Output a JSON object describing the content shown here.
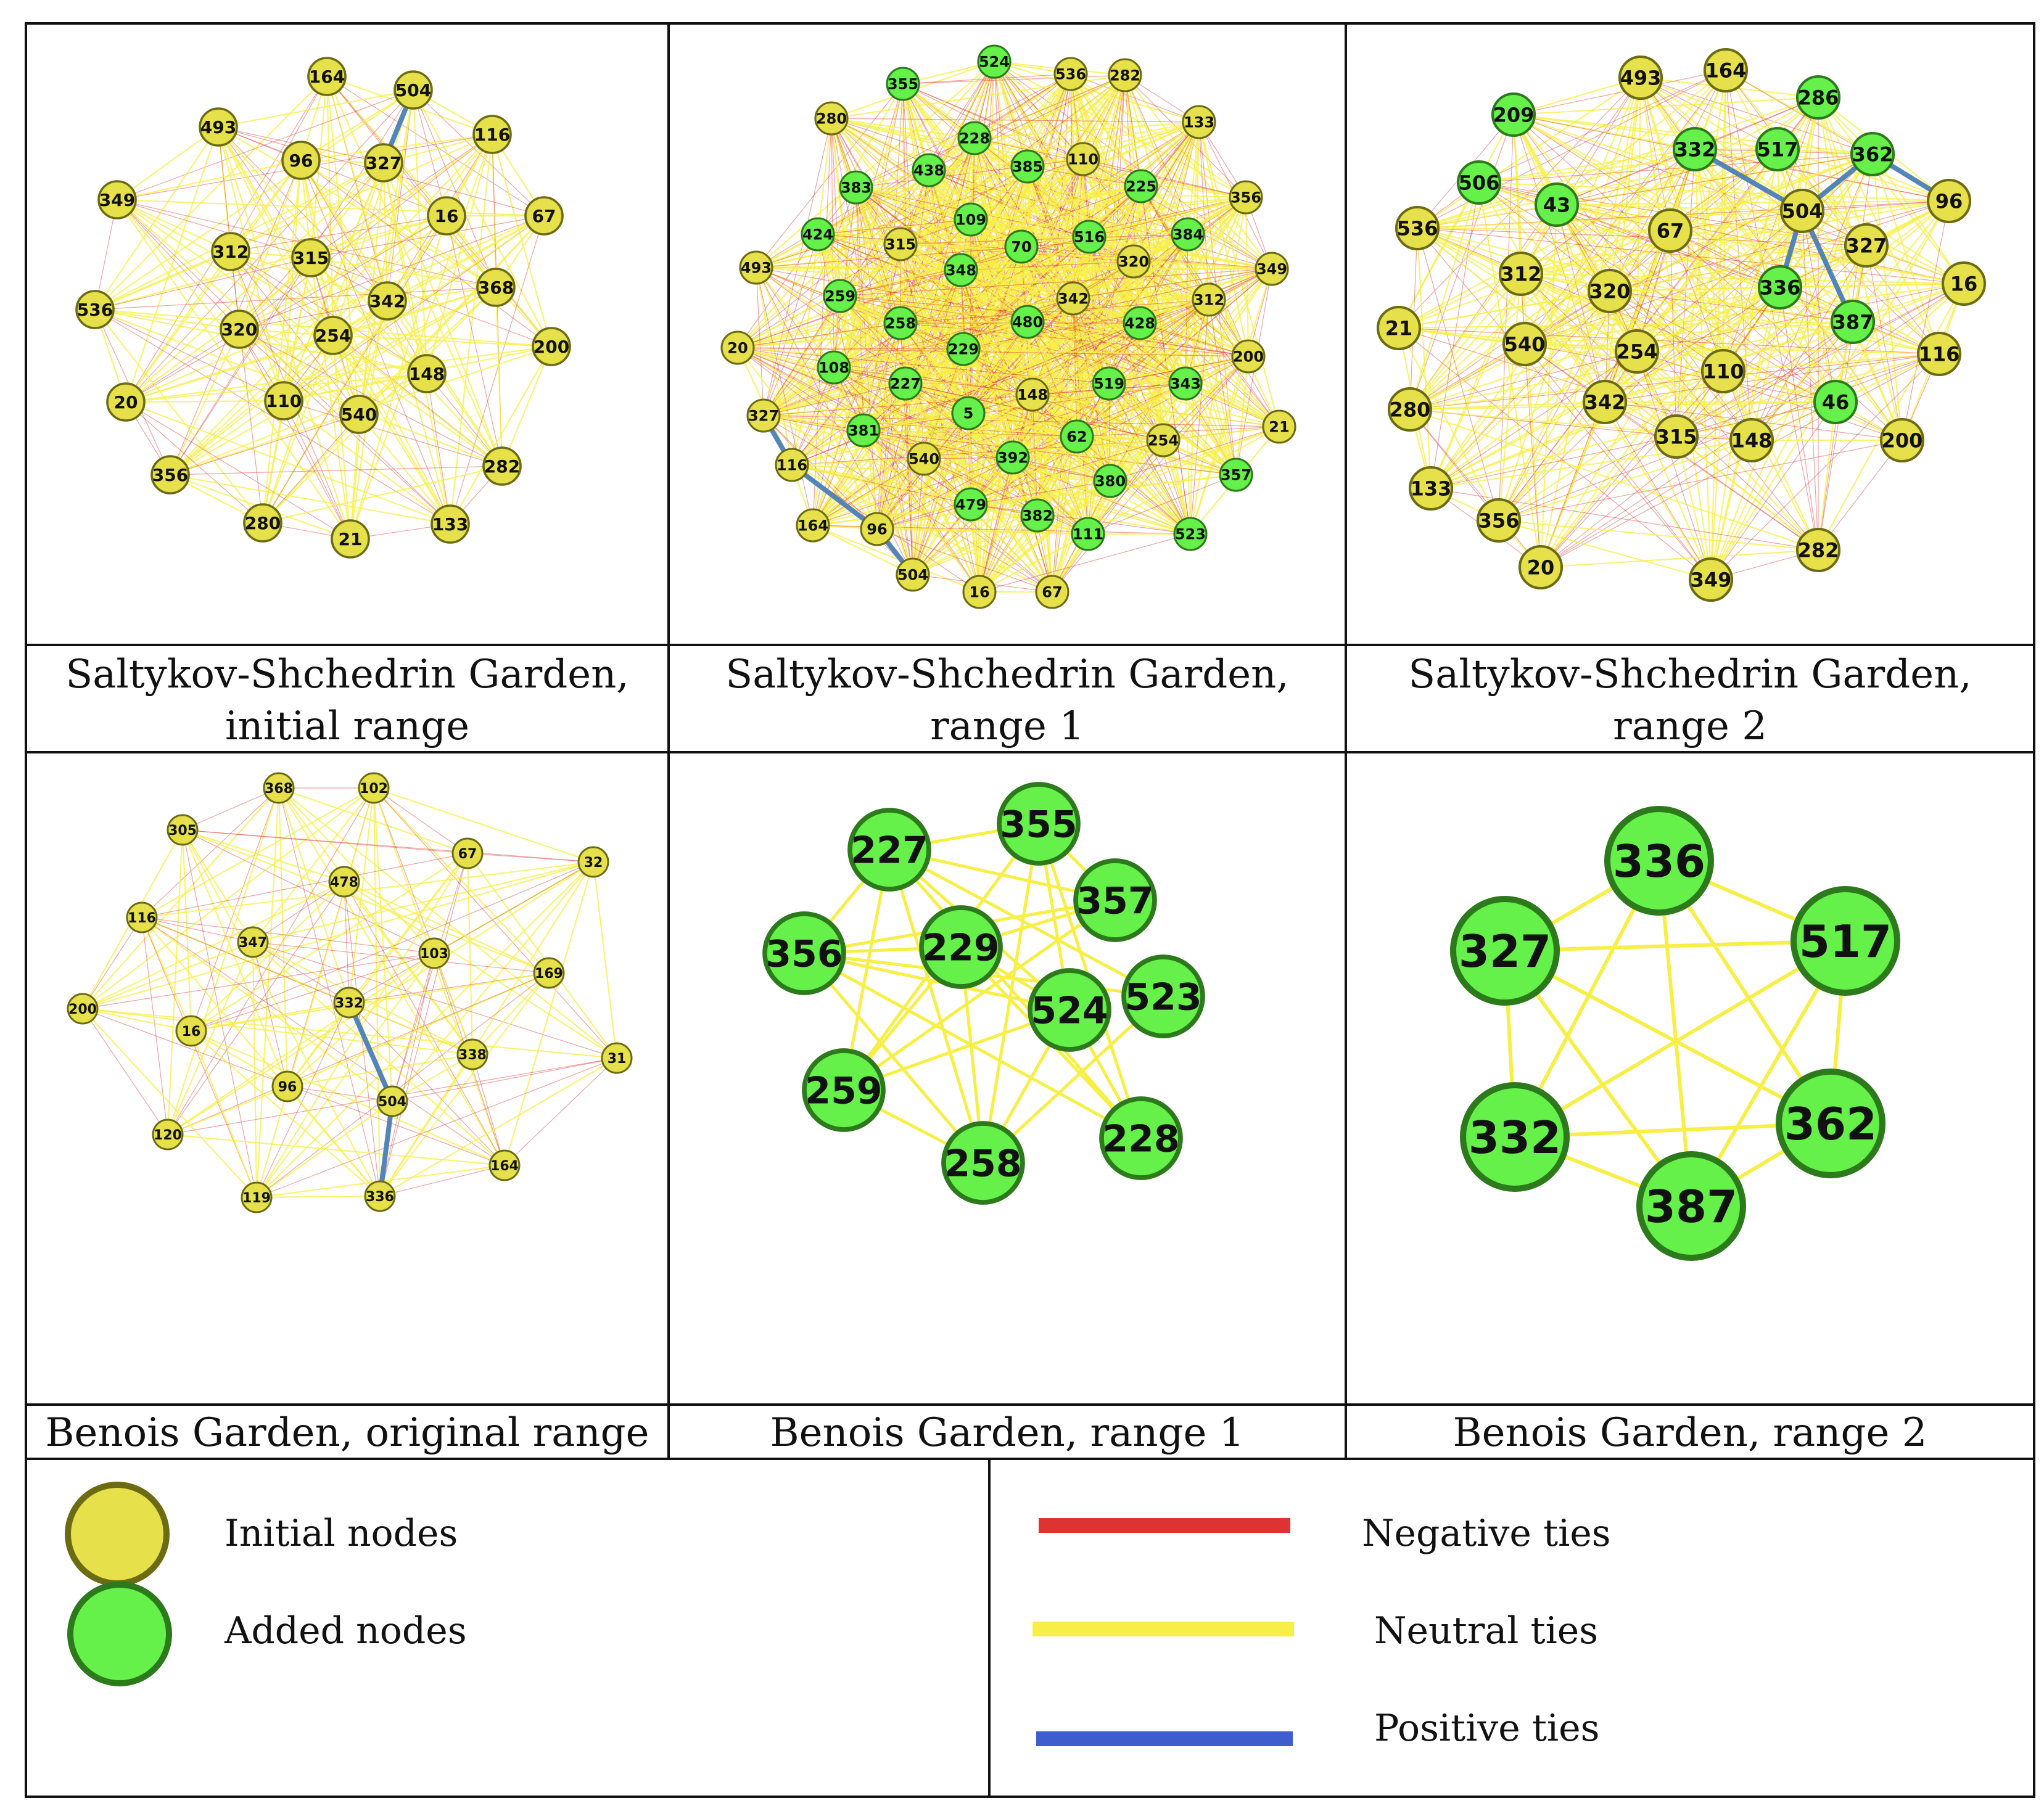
{
  "colors": {
    "initial_fill": "#e6e04a",
    "initial_stroke": "#6b6b12",
    "added_fill": "#66f04a",
    "added_stroke": "#2c7a1c",
    "negative": "#dd3333",
    "neutral": "#f7ef45",
    "positive": "#3d5ecc",
    "positive_drawn": "#4a7fb8"
  },
  "panels": [
    {
      "id": "ssg-initial",
      "caption_line1": "Saltykov-Shchedrin Garden,",
      "caption_line2": "initial range",
      "nodes": [
        {
          "id": "164",
          "type": "initial"
        },
        {
          "id": "504",
          "type": "initial"
        },
        {
          "id": "116",
          "type": "initial"
        },
        {
          "id": "493",
          "type": "initial"
        },
        {
          "id": "96",
          "type": "initial"
        },
        {
          "id": "327",
          "type": "initial"
        },
        {
          "id": "349",
          "type": "initial"
        },
        {
          "id": "16",
          "type": "initial"
        },
        {
          "id": "67",
          "type": "initial"
        },
        {
          "id": "312",
          "type": "initial"
        },
        {
          "id": "315",
          "type": "initial"
        },
        {
          "id": "368",
          "type": "initial"
        },
        {
          "id": "536",
          "type": "initial"
        },
        {
          "id": "342",
          "type": "initial"
        },
        {
          "id": "320",
          "type": "initial"
        },
        {
          "id": "254",
          "type": "initial"
        },
        {
          "id": "200",
          "type": "initial"
        },
        {
          "id": "148",
          "type": "initial"
        },
        {
          "id": "20",
          "type": "initial"
        },
        {
          "id": "110",
          "type": "initial"
        },
        {
          "id": "540",
          "type": "initial"
        },
        {
          "id": "356",
          "type": "initial"
        },
        {
          "id": "282",
          "type": "initial"
        },
        {
          "id": "280",
          "type": "initial"
        },
        {
          "id": "21",
          "type": "initial"
        },
        {
          "id": "133",
          "type": "initial"
        }
      ],
      "positive_ties": [
        [
          "504",
          "327"
        ]
      ]
    },
    {
      "id": "ssg-range1",
      "caption_line1": "Saltykov-Shchedrin Garden,",
      "caption_line2": "range 1",
      "nodes": [
        {
          "id": "524",
          "type": "added"
        },
        {
          "id": "355",
          "type": "added"
        },
        {
          "id": "536",
          "type": "initial"
        },
        {
          "id": "282",
          "type": "initial"
        },
        {
          "id": "280",
          "type": "initial"
        },
        {
          "id": "133",
          "type": "initial"
        },
        {
          "id": "228",
          "type": "added"
        },
        {
          "id": "110",
          "type": "initial"
        },
        {
          "id": "438",
          "type": "added"
        },
        {
          "id": "385",
          "type": "added"
        },
        {
          "id": "383",
          "type": "added"
        },
        {
          "id": "225",
          "type": "added"
        },
        {
          "id": "356",
          "type": "initial"
        },
        {
          "id": "109",
          "type": "added"
        },
        {
          "id": "424",
          "type": "added"
        },
        {
          "id": "315",
          "type": "initial"
        },
        {
          "id": "70",
          "type": "added"
        },
        {
          "id": "516",
          "type": "added"
        },
        {
          "id": "384",
          "type": "added"
        },
        {
          "id": "348",
          "type": "added"
        },
        {
          "id": "320",
          "type": "initial"
        },
        {
          "id": "493",
          "type": "initial"
        },
        {
          "id": "349",
          "type": "initial"
        },
        {
          "id": "259",
          "type": "added"
        },
        {
          "id": "342",
          "type": "initial"
        },
        {
          "id": "312",
          "type": "initial"
        },
        {
          "id": "258",
          "type": "added"
        },
        {
          "id": "480",
          "type": "added"
        },
        {
          "id": "428",
          "type": "added"
        },
        {
          "id": "229",
          "type": "added"
        },
        {
          "id": "20",
          "type": "initial"
        },
        {
          "id": "200",
          "type": "initial"
        },
        {
          "id": "108",
          "type": "added"
        },
        {
          "id": "227",
          "type": "added"
        },
        {
          "id": "519",
          "type": "added"
        },
        {
          "id": "343",
          "type": "added"
        },
        {
          "id": "148",
          "type": "initial"
        },
        {
          "id": "327",
          "type": "initial"
        },
        {
          "id": "5",
          "type": "added"
        },
        {
          "id": "21",
          "type": "initial"
        },
        {
          "id": "381",
          "type": "added"
        },
        {
          "id": "62",
          "type": "added"
        },
        {
          "id": "254",
          "type": "initial"
        },
        {
          "id": "116",
          "type": "initial"
        },
        {
          "id": "540",
          "type": "initial"
        },
        {
          "id": "392",
          "type": "added"
        },
        {
          "id": "357",
          "type": "added"
        },
        {
          "id": "380",
          "type": "added"
        },
        {
          "id": "479",
          "type": "added"
        },
        {
          "id": "164",
          "type": "initial"
        },
        {
          "id": "96",
          "type": "initial"
        },
        {
          "id": "382",
          "type": "added"
        },
        {
          "id": "111",
          "type": "added"
        },
        {
          "id": "523",
          "type": "added"
        },
        {
          "id": "504",
          "type": "initial"
        },
        {
          "id": "16",
          "type": "initial"
        },
        {
          "id": "67",
          "type": "initial"
        }
      ],
      "positive_ties": [
        [
          "327",
          "116"
        ],
        [
          "116",
          "96"
        ],
        [
          "96",
          "504"
        ]
      ]
    },
    {
      "id": "ssg-range2",
      "caption_line1": "Saltykov-Shchedrin Garden,",
      "caption_line2": "range 2",
      "nodes": [
        {
          "id": "493",
          "type": "initial"
        },
        {
          "id": "164",
          "type": "initial"
        },
        {
          "id": "209",
          "type": "added"
        },
        {
          "id": "286",
          "type": "added"
        },
        {
          "id": "332",
          "type": "added"
        },
        {
          "id": "517",
          "type": "added"
        },
        {
          "id": "362",
          "type": "added"
        },
        {
          "id": "506",
          "type": "added"
        },
        {
          "id": "43",
          "type": "added"
        },
        {
          "id": "96",
          "type": "initial"
        },
        {
          "id": "504",
          "type": "initial"
        },
        {
          "id": "536",
          "type": "initial"
        },
        {
          "id": "67",
          "type": "initial"
        },
        {
          "id": "327",
          "type": "initial"
        },
        {
          "id": "312",
          "type": "initial"
        },
        {
          "id": "16",
          "type": "initial"
        },
        {
          "id": "320",
          "type": "initial"
        },
        {
          "id": "336",
          "type": "added"
        },
        {
          "id": "21",
          "type": "initial"
        },
        {
          "id": "387",
          "type": "added"
        },
        {
          "id": "540",
          "type": "initial"
        },
        {
          "id": "254",
          "type": "initial"
        },
        {
          "id": "116",
          "type": "initial"
        },
        {
          "id": "110",
          "type": "initial"
        },
        {
          "id": "280",
          "type": "initial"
        },
        {
          "id": "342",
          "type": "initial"
        },
        {
          "id": "46",
          "type": "added"
        },
        {
          "id": "315",
          "type": "initial"
        },
        {
          "id": "148",
          "type": "initial"
        },
        {
          "id": "200",
          "type": "initial"
        },
        {
          "id": "133",
          "type": "initial"
        },
        {
          "id": "356",
          "type": "initial"
        },
        {
          "id": "282",
          "type": "initial"
        },
        {
          "id": "20",
          "type": "initial"
        },
        {
          "id": "349",
          "type": "initial"
        }
      ],
      "positive_ties": [
        [
          "362",
          "96"
        ],
        [
          "504",
          "362"
        ],
        [
          "504",
          "387"
        ],
        [
          "504",
          "332"
        ],
        [
          "504",
          "336"
        ]
      ]
    },
    {
      "id": "benois-original",
      "caption_line1": "Benois Garden, original range",
      "nodes": [
        {
          "id": "368",
          "type": "initial"
        },
        {
          "id": "102",
          "type": "initial"
        },
        {
          "id": "305",
          "type": "initial"
        },
        {
          "id": "67",
          "type": "initial"
        },
        {
          "id": "32",
          "type": "initial"
        },
        {
          "id": "478",
          "type": "initial"
        },
        {
          "id": "116",
          "type": "initial"
        },
        {
          "id": "347",
          "type": "initial"
        },
        {
          "id": "103",
          "type": "initial"
        },
        {
          "id": "169",
          "type": "initial"
        },
        {
          "id": "200",
          "type": "initial"
        },
        {
          "id": "332",
          "type": "initial"
        },
        {
          "id": "16",
          "type": "initial"
        },
        {
          "id": "338",
          "type": "initial"
        },
        {
          "id": "31",
          "type": "initial"
        },
        {
          "id": "96",
          "type": "initial"
        },
        {
          "id": "504",
          "type": "initial"
        },
        {
          "id": "120",
          "type": "initial"
        },
        {
          "id": "164",
          "type": "initial"
        },
        {
          "id": "119",
          "type": "initial"
        },
        {
          "id": "336",
          "type": "initial"
        }
      ],
      "positive_ties": [
        [
          "332",
          "504"
        ],
        [
          "504",
          "336"
        ]
      ]
    },
    {
      "id": "benois-range1",
      "caption_line1": "Benois Garden, range 1",
      "nodes": [
        {
          "id": "227",
          "type": "added"
        },
        {
          "id": "355",
          "type": "added"
        },
        {
          "id": "357",
          "type": "added"
        },
        {
          "id": "356",
          "type": "added"
        },
        {
          "id": "229",
          "type": "added"
        },
        {
          "id": "524",
          "type": "added"
        },
        {
          "id": "523",
          "type": "added"
        },
        {
          "id": "259",
          "type": "added"
        },
        {
          "id": "228",
          "type": "added"
        },
        {
          "id": "258",
          "type": "added"
        }
      ],
      "positive_ties": []
    },
    {
      "id": "benois-range2",
      "caption_line1": "Benois Garden, range 2",
      "nodes": [
        {
          "id": "336",
          "type": "added"
        },
        {
          "id": "517",
          "type": "added"
        },
        {
          "id": "327",
          "type": "added"
        },
        {
          "id": "362",
          "type": "added"
        },
        {
          "id": "332",
          "type": "added"
        },
        {
          "id": "387",
          "type": "added"
        }
      ],
      "positive_ties": []
    }
  ],
  "legend": {
    "initial_label": "Initial nodes",
    "added_label": "Added nodes",
    "negative_label": "Negative ties",
    "neutral_label": "Neutral ties",
    "positive_label": "Positive ties"
  }
}
